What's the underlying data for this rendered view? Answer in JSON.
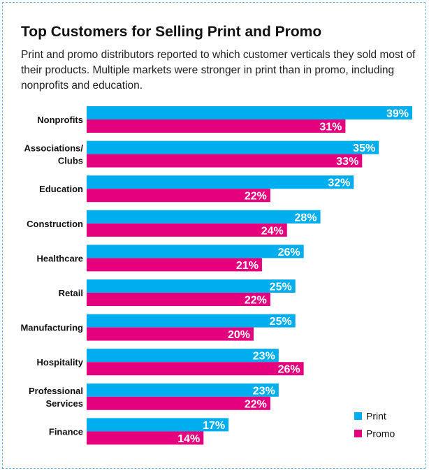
{
  "chart_data": {
    "type": "bar",
    "orientation": "horizontal",
    "title": "Top Customers for Selling Print and Promo",
    "subtitle": "Print and promo distributors reported to which customer verticals they sold most of their products. Multiple markets were stronger in print than in promo, including nonprofits and education.",
    "categories": [
      [
        "Nonprofits"
      ],
      [
        "Associations/",
        "Clubs"
      ],
      [
        "Education"
      ],
      [
        "Construction"
      ],
      [
        "Healthcare"
      ],
      [
        "Retail"
      ],
      [
        "Manufacturing"
      ],
      [
        "Hospitality"
      ],
      [
        "Professional",
        "Services"
      ],
      [
        "Finance"
      ]
    ],
    "series": [
      {
        "name": "Print",
        "color": "#00aeef",
        "values": [
          39,
          35,
          32,
          28,
          26,
          25,
          25,
          23,
          23,
          17
        ]
      },
      {
        "name": "Promo",
        "color": "#e5007e",
        "values": [
          31,
          33,
          22,
          24,
          21,
          22,
          20,
          26,
          22,
          14
        ]
      }
    ],
    "value_suffix": "%",
    "xlim": [
      0,
      39
    ],
    "grid": false,
    "legend": {
      "position": "bottom-right"
    }
  }
}
